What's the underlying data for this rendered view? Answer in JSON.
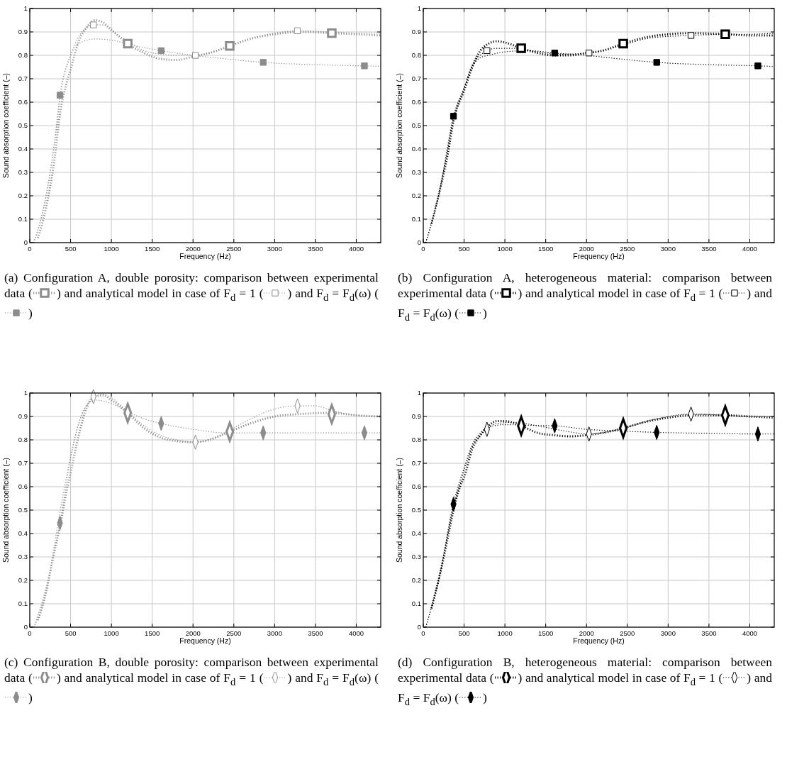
{
  "chart_data": [
    {
      "type": "line",
      "xlabel": "Frequency (Hz)",
      "ylabel": "Sound absorption coefficient (–)",
      "xlim": [
        0,
        4300
      ],
      "ylim": [
        0,
        1
      ],
      "xticks": [
        0,
        500,
        1000,
        1500,
        2000,
        2500,
        3000,
        3500,
        4000
      ],
      "yticks": [
        0,
        0.1,
        0.2,
        0.3,
        0.4,
        0.5,
        0.6,
        0.7,
        0.8,
        0.9,
        1
      ],
      "grid": true,
      "annotations": [
        "(a) Configuration A, double porosity: comparison between experimental data (",
        ") and analytical model in case of F$_{d}$ = 1 (",
        ") and F$_{d}$ = F$_{d}$(ω) (",
        ")"
      ],
      "series": [
        {
          "color": "#8c8c8c",
          "line_style": "dotted",
          "x": [
            100,
            200,
            300,
            370,
            450,
            500,
            600,
            700,
            800,
            900,
            1000,
            1200,
            1400,
            1600,
            1800,
            2000,
            2200,
            2450,
            2700,
            3000,
            3300,
            3700,
            4000,
            4300
          ],
          "values": [
            0.02,
            0.15,
            0.35,
            0.55,
            0.68,
            0.74,
            0.86,
            0.92,
            0.95,
            0.94,
            0.91,
            0.85,
            0.81,
            0.785,
            0.78,
            0.795,
            0.81,
            0.84,
            0.87,
            0.89,
            0.9,
            0.895,
            0.89,
            0.885
          ]
        },
        {
          "color": "#8c8c8c",
          "line_style": "dotted",
          "x": [
            50,
            200,
            300,
            400,
            500,
            600,
            700,
            780,
            900,
            1000,
            1200,
            1400,
            1600,
            1800,
            2030,
            2300,
            2600,
            3000,
            3280,
            3700,
            4000,
            4300
          ],
          "values": [
            0,
            0.2,
            0.42,
            0.68,
            0.8,
            0.88,
            0.92,
            0.93,
            0.93,
            0.905,
            0.86,
            0.82,
            0.805,
            0.8,
            0.8,
            0.82,
            0.86,
            0.895,
            0.905,
            0.9,
            0.895,
            0.895
          ]
        },
        {
          "color": "#8c8c8c",
          "line_style": "dotted",
          "x": [
            50,
            200,
            300,
            370,
            500,
            600,
            800,
            1000,
            1300,
            1610,
            2000,
            2400,
            2860,
            3500,
            4100,
            4300
          ],
          "values": [
            0,
            0.2,
            0.42,
            0.63,
            0.8,
            0.85,
            0.87,
            0.865,
            0.84,
            0.82,
            0.8,
            0.785,
            0.77,
            0.76,
            0.755,
            0.753
          ]
        },
        {
          "type": "scatter",
          "color": "#8c8c8c",
          "marker": "square",
          "x": [
            1200,
            2450,
            3700
          ],
          "values": [
            0.85,
            0.84,
            0.895
          ]
        },
        {
          "type": "scatter",
          "color": "#8c8c8c",
          "marker": "square",
          "x": [
            780,
            2030,
            3280
          ],
          "values": [
            0.93,
            0.8,
            0.905
          ]
        },
        {
          "type": "scatter",
          "color": "#8c8c8c",
          "marker": "square",
          "x": [
            370,
            1610,
            2860,
            4100
          ],
          "values": [
            0.63,
            0.82,
            0.77,
            0.755
          ]
        }
      ]
    },
    {
      "type": "line",
      "xlabel": "Frequency (Hz)",
      "ylabel": "Sound absorption coefficient (–)",
      "xlim": [
        0,
        4300
      ],
      "ylim": [
        0,
        1
      ],
      "xticks": [
        0,
        500,
        1000,
        1500,
        2000,
        2500,
        3000,
        3500,
        4000
      ],
      "yticks": [
        0,
        0.1,
        0.2,
        0.3,
        0.4,
        0.5,
        0.6,
        0.7,
        0.8,
        0.9,
        1
      ],
      "grid": true,
      "annotations": [
        "(b) Configuration A, heterogeneous material: comparison between experimental data (",
        ") and analytical model in case of F$_{d}$ = 1 (",
        ") and F$_{d}$ = F$_{d}$(ω) (",
        ")"
      ],
      "series": [
        {
          "color": "#000000",
          "line_style": "dotted",
          "x": [
            100,
            200,
            300,
            370,
            500,
            600,
            700,
            800,
            900,
            1000,
            1200,
            1400,
            1600,
            1800,
            2000,
            2200,
            2450,
            2700,
            3000,
            3300,
            3700,
            4000,
            4300
          ],
          "values": [
            0.08,
            0.22,
            0.38,
            0.52,
            0.65,
            0.75,
            0.82,
            0.85,
            0.86,
            0.855,
            0.83,
            0.81,
            0.8,
            0.8,
            0.81,
            0.82,
            0.85,
            0.875,
            0.89,
            0.895,
            0.89,
            0.885,
            0.885
          ]
        },
        {
          "color": "#000000",
          "line_style": "dotted",
          "x": [
            30,
            200,
            370,
            500,
            600,
            700,
            780,
            900,
            1100,
            1400,
            1700,
            2030,
            2400,
            2800,
            3280,
            3700,
            4000,
            4300
          ],
          "values": [
            0,
            0.22,
            0.52,
            0.66,
            0.76,
            0.8,
            0.82,
            0.83,
            0.83,
            0.815,
            0.805,
            0.81,
            0.84,
            0.875,
            0.885,
            0.89,
            0.89,
            0.895
          ]
        },
        {
          "color": "#000000",
          "line_style": "dotted",
          "x": [
            30,
            200,
            370,
            500,
            600,
            700,
            800,
            1000,
            1300,
            1610,
            2000,
            2400,
            2860,
            3500,
            4100,
            4300
          ],
          "values": [
            0,
            0.22,
            0.54,
            0.66,
            0.75,
            0.79,
            0.8,
            0.815,
            0.82,
            0.81,
            0.8,
            0.785,
            0.77,
            0.76,
            0.755,
            0.752
          ]
        },
        {
          "type": "scatter",
          "color": "#000000",
          "marker": "square",
          "x": [
            1200,
            2450,
            3700
          ],
          "values": [
            0.83,
            0.85,
            0.89
          ]
        },
        {
          "type": "scatter",
          "color": "#000000",
          "marker": "square",
          "x": [
            780,
            2030,
            3280
          ],
          "values": [
            0.82,
            0.81,
            0.885
          ]
        },
        {
          "type": "scatter",
          "color": "#000000",
          "marker": "square",
          "x": [
            370,
            1610,
            2860,
            4100
          ],
          "values": [
            0.54,
            0.81,
            0.77,
            0.755
          ]
        }
      ]
    },
    {
      "type": "line",
      "xlabel": "Frequency (Hz)",
      "ylabel": "Sound absorption coefficient (–)",
      "xlim": [
        0,
        4300
      ],
      "ylim": [
        0,
        1
      ],
      "xticks": [
        0,
        500,
        1000,
        1500,
        2000,
        2500,
        3000,
        3500,
        4000
      ],
      "yticks": [
        0,
        0.1,
        0.2,
        0.3,
        0.4,
        0.5,
        0.6,
        0.7,
        0.8,
        0.9,
        1
      ],
      "grid": true,
      "annotations": [
        "(c) Configuration B, double porosity: comparison between experimental data (",
        ") and analytical model in case of F$_{d}$ = 1 (",
        ") and F$_{d}$ = F$_{d}$(ω) (",
        ")"
      ],
      "series": [
        {
          "color": "#8c8c8c",
          "line_style": "dotted",
          "x": [
            100,
            200,
            300,
            370,
            450,
            500,
            600,
            700,
            800,
            900,
            1000,
            1200,
            1400,
            1600,
            1800,
            2000,
            2200,
            2450,
            2700,
            3000,
            3300,
            3700,
            4000,
            4300
          ],
          "values": [
            0.03,
            0.15,
            0.32,
            0.43,
            0.58,
            0.66,
            0.82,
            0.94,
            0.985,
            0.99,
            0.97,
            0.915,
            0.85,
            0.81,
            0.795,
            0.79,
            0.8,
            0.835,
            0.87,
            0.9,
            0.91,
            0.915,
            0.905,
            0.9
          ]
        },
        {
          "color": "#8c8c8c",
          "line_style": "dotted",
          "x": [
            50,
            200,
            300,
            400,
            500,
            600,
            700,
            780,
            900,
            1000,
            1200,
            1400,
            1600,
            1800,
            2030,
            2300,
            2600,
            2900,
            3100,
            3280,
            3500,
            3700,
            4000,
            4300
          ],
          "values": [
            0,
            0.15,
            0.35,
            0.55,
            0.73,
            0.87,
            0.95,
            0.985,
            0.995,
            0.98,
            0.92,
            0.86,
            0.82,
            0.8,
            0.79,
            0.815,
            0.87,
            0.92,
            0.94,
            0.945,
            0.945,
            0.925,
            0.905,
            0.9
          ]
        },
        {
          "color": "#8c8c8c",
          "line_style": "dotted",
          "x": [
            50,
            200,
            370,
            500,
            600,
            700,
            800,
            1000,
            1200,
            1400,
            1610,
            2000,
            2400,
            2860,
            3500,
            4100,
            4300
          ],
          "values": [
            0,
            0.17,
            0.445,
            0.72,
            0.87,
            0.95,
            0.97,
            0.955,
            0.92,
            0.89,
            0.87,
            0.845,
            0.83,
            0.83,
            0.83,
            0.83,
            0.83
          ]
        },
        {
          "type": "scatter",
          "color": "#8c8c8c",
          "marker": "diamond",
          "x": [
            1200,
            2450,
            3700
          ],
          "values": [
            0.915,
            0.835,
            0.91
          ]
        },
        {
          "type": "scatter",
          "color": "#8c8c8c",
          "marker": "diamond",
          "x": [
            780,
            2030,
            3280
          ],
          "values": [
            0.985,
            0.79,
            0.945
          ]
        },
        {
          "type": "scatter",
          "color": "#8c8c8c",
          "marker": "diamond",
          "x": [
            370,
            1610,
            2860,
            4100
          ],
          "values": [
            0.445,
            0.87,
            0.83,
            0.83
          ]
        }
      ]
    },
    {
      "type": "line",
      "xlabel": "Frequency (Hz)",
      "ylabel": "Sound absorption coefficient (–)",
      "xlim": [
        0,
        4300
      ],
      "ylim": [
        0,
        1
      ],
      "xticks": [
        0,
        500,
        1000,
        1500,
        2000,
        2500,
        3000,
        3500,
        4000
      ],
      "yticks": [
        0,
        0.1,
        0.2,
        0.3,
        0.4,
        0.5,
        0.6,
        0.7,
        0.8,
        0.9,
        1
      ],
      "grid": true,
      "annotations": [
        "(d) Configuration B, heterogeneous material: comparison between experimental data (",
        ") and analytical model in case of F$_{d}$ = 1 (",
        ") and F$_{d}$ = F$_{d}$(ω) (",
        ")"
      ],
      "series": [
        {
          "color": "#000000",
          "line_style": "dotted",
          "x": [
            100,
            200,
            300,
            370,
            450,
            500,
            600,
            700,
            800,
            900,
            1000,
            1200,
            1400,
            1600,
            1800,
            2000,
            2200,
            2450,
            2700,
            3000,
            3300,
            3700,
            4000,
            4300
          ],
          "values": [
            0.08,
            0.22,
            0.38,
            0.5,
            0.6,
            0.64,
            0.76,
            0.82,
            0.86,
            0.88,
            0.88,
            0.86,
            0.83,
            0.82,
            0.815,
            0.82,
            0.83,
            0.85,
            0.875,
            0.895,
            0.905,
            0.905,
            0.9,
            0.895
          ]
        },
        {
          "color": "#000000",
          "line_style": "dotted",
          "x": [
            30,
            200,
            370,
            500,
            600,
            700,
            780,
            900,
            1100,
            1400,
            1700,
            2030,
            2400,
            2800,
            3280,
            3700,
            4000,
            4300
          ],
          "values": [
            0,
            0.22,
            0.51,
            0.67,
            0.77,
            0.82,
            0.845,
            0.87,
            0.875,
            0.86,
            0.84,
            0.825,
            0.845,
            0.885,
            0.91,
            0.905,
            0.9,
            0.9
          ]
        },
        {
          "color": "#000000",
          "line_style": "dotted",
          "x": [
            30,
            200,
            370,
            500,
            600,
            700,
            800,
            1000,
            1300,
            1610,
            2000,
            2400,
            2860,
            3500,
            4100,
            4300
          ],
          "values": [
            0,
            0.22,
            0.53,
            0.68,
            0.78,
            0.83,
            0.855,
            0.865,
            0.862,
            0.86,
            0.845,
            0.838,
            0.832,
            0.828,
            0.825,
            0.825
          ]
        },
        {
          "type": "scatter",
          "color": "#000000",
          "marker": "diamond",
          "x": [
            1200,
            2450,
            3700
          ],
          "values": [
            0.86,
            0.85,
            0.905
          ]
        },
        {
          "type": "scatter",
          "color": "#000000",
          "marker": "diamond",
          "x": [
            780,
            2030,
            3280
          ],
          "values": [
            0.845,
            0.825,
            0.91
          ]
        },
        {
          "type": "scatter",
          "color": "#000000",
          "marker": "diamond",
          "x": [
            370,
            1610,
            2860,
            4100
          ],
          "values": [
            0.525,
            0.86,
            0.832,
            0.825
          ]
        }
      ]
    }
  ]
}
